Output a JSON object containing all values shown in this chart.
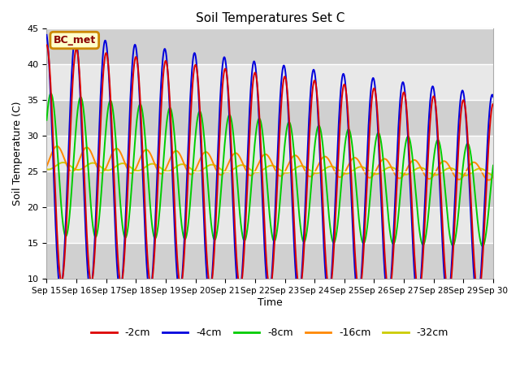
{
  "title": "Soil Temperatures Set C",
  "xlabel": "Time",
  "ylabel": "Soil Temperature (C)",
  "ylim": [
    10,
    45
  ],
  "xlim_days": [
    0,
    15
  ],
  "x_tick_labels": [
    "Sep 15",
    "Sep 16",
    "Sep 17",
    "Sep 18",
    "Sep 19",
    "Sep 20",
    "Sep 21",
    "Sep 22",
    "Sep 23",
    "Sep 24",
    "Sep 25",
    "Sep 26",
    "Sep 27",
    "Sep 28",
    "Sep 29",
    "Sep 30"
  ],
  "colors": {
    "-2cm": "#dd0000",
    "-4cm": "#0000dd",
    "-8cm": "#00cc00",
    "-16cm": "#ff8800",
    "-32cm": "#cccc00"
  },
  "legend_label": "BC_met",
  "legend_colors": {
    "border": "#cc8800",
    "bg": "#ffffcc",
    "text": "#880000"
  },
  "background_color": "#ffffff",
  "plot_bg_color": "#e0e0e0",
  "grid_color": "#ffffff",
  "linewidth": 1.4,
  "legend_linewidth": 2.0
}
